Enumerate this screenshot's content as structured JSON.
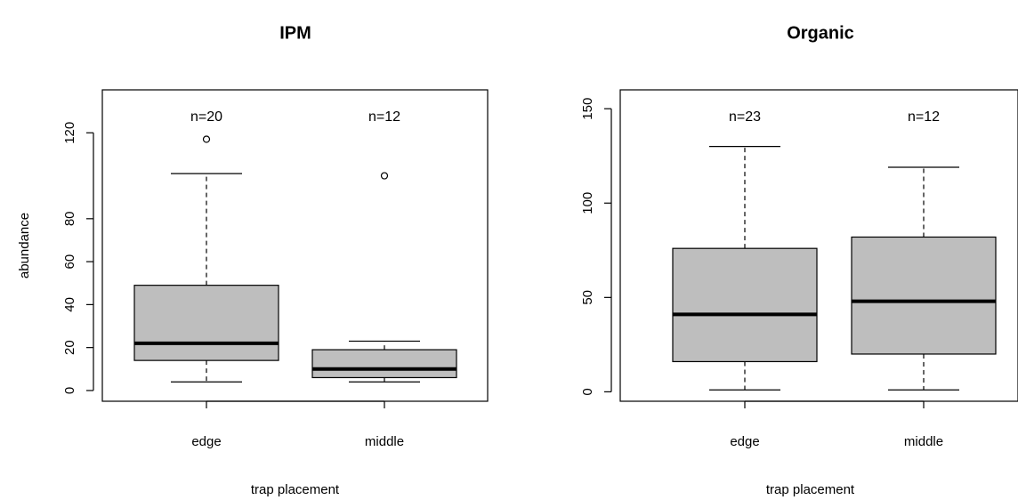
{
  "chart_data": [
    {
      "type": "boxplot",
      "title": "IPM",
      "xlabel": "trap placement",
      "ylabel": "abundance",
      "ylim": [
        -5,
        140
      ],
      "yticks": [
        0,
        20,
        40,
        60,
        80,
        120
      ],
      "categories": [
        "edge",
        "middle"
      ],
      "box_color": "#bebebe",
      "grid": false,
      "boxes": [
        {
          "category": "edge",
          "n_label": "n=20",
          "lower_whisker": 4,
          "q1": 14,
          "median": 22,
          "q3": 49,
          "upper_whisker": 101,
          "outliers": [
            117
          ]
        },
        {
          "category": "middle",
          "n_label": "n=12",
          "lower_whisker": 4,
          "q1": 6,
          "median": 10,
          "q3": 19,
          "upper_whisker": 23,
          "outliers": [
            100
          ]
        }
      ]
    },
    {
      "type": "boxplot",
      "title": "Organic",
      "xlabel": "trap placement",
      "ylabel": "",
      "ylim": [
        -5,
        160
      ],
      "yticks": [
        0,
        50,
        100,
        150
      ],
      "categories": [
        "edge",
        "middle"
      ],
      "box_color": "#bebebe",
      "grid": false,
      "boxes": [
        {
          "category": "edge",
          "n_label": "n=23",
          "lower_whisker": 1,
          "q1": 16,
          "median": 41,
          "q3": 76,
          "upper_whisker": 130,
          "outliers": []
        },
        {
          "category": "middle",
          "n_label": "n=12",
          "lower_whisker": 1,
          "q1": 20,
          "median": 48,
          "q3": 82,
          "upper_whisker": 119,
          "outliers": []
        }
      ]
    }
  ]
}
